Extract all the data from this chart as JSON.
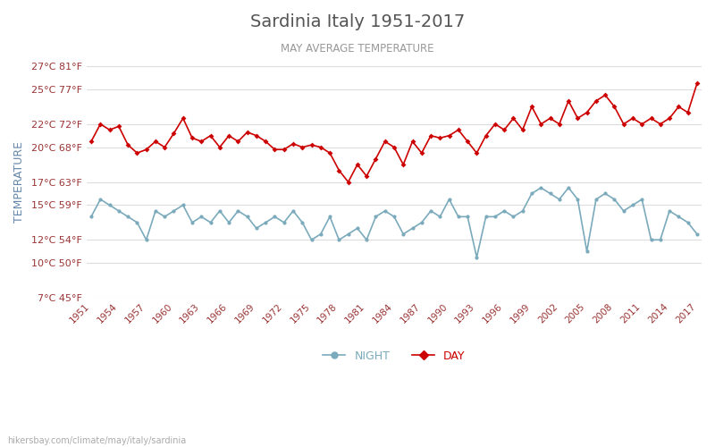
{
  "title": "Sardinia Italy 1951-2017",
  "subtitle": "MAY AVERAGE TEMPERATURE",
  "ylabel": "TEMPERATURE",
  "watermark": "hikersbay.com/climate/may/italy/sardinia",
  "background_color": "#ffffff",
  "plot_bg_color": "#ffffff",
  "grid_color": "#dddddd",
  "title_color": "#555555",
  "subtitle_color": "#999999",
  "ylabel_color": "#6688aa",
  "tick_color": "#993333",
  "years": [
    1951,
    1952,
    1953,
    1954,
    1955,
    1956,
    1957,
    1958,
    1959,
    1960,
    1961,
    1962,
    1963,
    1964,
    1965,
    1966,
    1967,
    1968,
    1969,
    1970,
    1971,
    1972,
    1973,
    1974,
    1975,
    1976,
    1977,
    1978,
    1979,
    1980,
    1981,
    1982,
    1983,
    1984,
    1985,
    1986,
    1987,
    1988,
    1989,
    1990,
    1991,
    1992,
    1993,
    1994,
    1995,
    1996,
    1997,
    1998,
    1999,
    2000,
    2001,
    2002,
    2003,
    2004,
    2005,
    2006,
    2007,
    2008,
    2009,
    2010,
    2011,
    2012,
    2013,
    2014,
    2015,
    2016,
    2017
  ],
  "day_temps": [
    20.5,
    22.0,
    21.5,
    21.8,
    20.2,
    19.5,
    19.8,
    20.5,
    20.0,
    21.2,
    22.5,
    20.8,
    20.5,
    21.0,
    20.0,
    21.0,
    20.5,
    21.3,
    21.0,
    20.5,
    19.8,
    19.8,
    20.3,
    20.0,
    20.2,
    20.0,
    19.5,
    18.0,
    17.0,
    18.5,
    17.5,
    19.0,
    20.5,
    20.0,
    18.5,
    20.5,
    19.5,
    21.0,
    20.8,
    21.0,
    21.5,
    20.5,
    19.5,
    21.0,
    22.0,
    21.5,
    22.5,
    21.5,
    23.5,
    22.0,
    22.5,
    22.0,
    24.0,
    22.5,
    23.0,
    24.0,
    24.5,
    23.5,
    22.0,
    22.5,
    22.0,
    22.5,
    22.0,
    22.5,
    23.5,
    23.0,
    25.5
  ],
  "night_temps": [
    14.0,
    15.5,
    15.0,
    14.5,
    14.0,
    13.5,
    12.0,
    14.5,
    14.0,
    14.5,
    15.0,
    13.5,
    14.0,
    13.5,
    14.5,
    13.5,
    14.5,
    14.0,
    13.0,
    13.5,
    14.0,
    13.5,
    14.5,
    13.5,
    12.0,
    12.5,
    14.0,
    12.0,
    12.5,
    13.0,
    12.0,
    14.0,
    14.5,
    14.0,
    12.5,
    13.0,
    13.5,
    14.5,
    14.0,
    15.5,
    14.0,
    14.0,
    10.5,
    14.0,
    14.0,
    14.5,
    14.0,
    14.5,
    16.0,
    16.5,
    16.0,
    15.5,
    16.5,
    15.5,
    11.0,
    15.5,
    16.0,
    15.5,
    14.5,
    15.0,
    15.5,
    12.0,
    12.0,
    14.5,
    14.0,
    13.5,
    12.5
  ],
  "yticks_c": [
    7,
    10,
    12,
    15,
    17,
    20,
    22,
    25,
    27
  ],
  "yticks_f": [
    45,
    50,
    54,
    59,
    63,
    68,
    72,
    77,
    81
  ],
  "xtick_years": [
    1951,
    1954,
    1957,
    1960,
    1963,
    1966,
    1969,
    1972,
    1975,
    1978,
    1981,
    1984,
    1987,
    1990,
    1993,
    1996,
    1999,
    2002,
    2005,
    2008,
    2011,
    2014,
    2017
  ],
  "ymin": 7,
  "ymax": 27,
  "day_color": "#cc0000",
  "night_color": "#7aaabb",
  "day_label": "DAY",
  "night_label": "NIGHT",
  "marker_size": 3,
  "line_width": 1.2
}
